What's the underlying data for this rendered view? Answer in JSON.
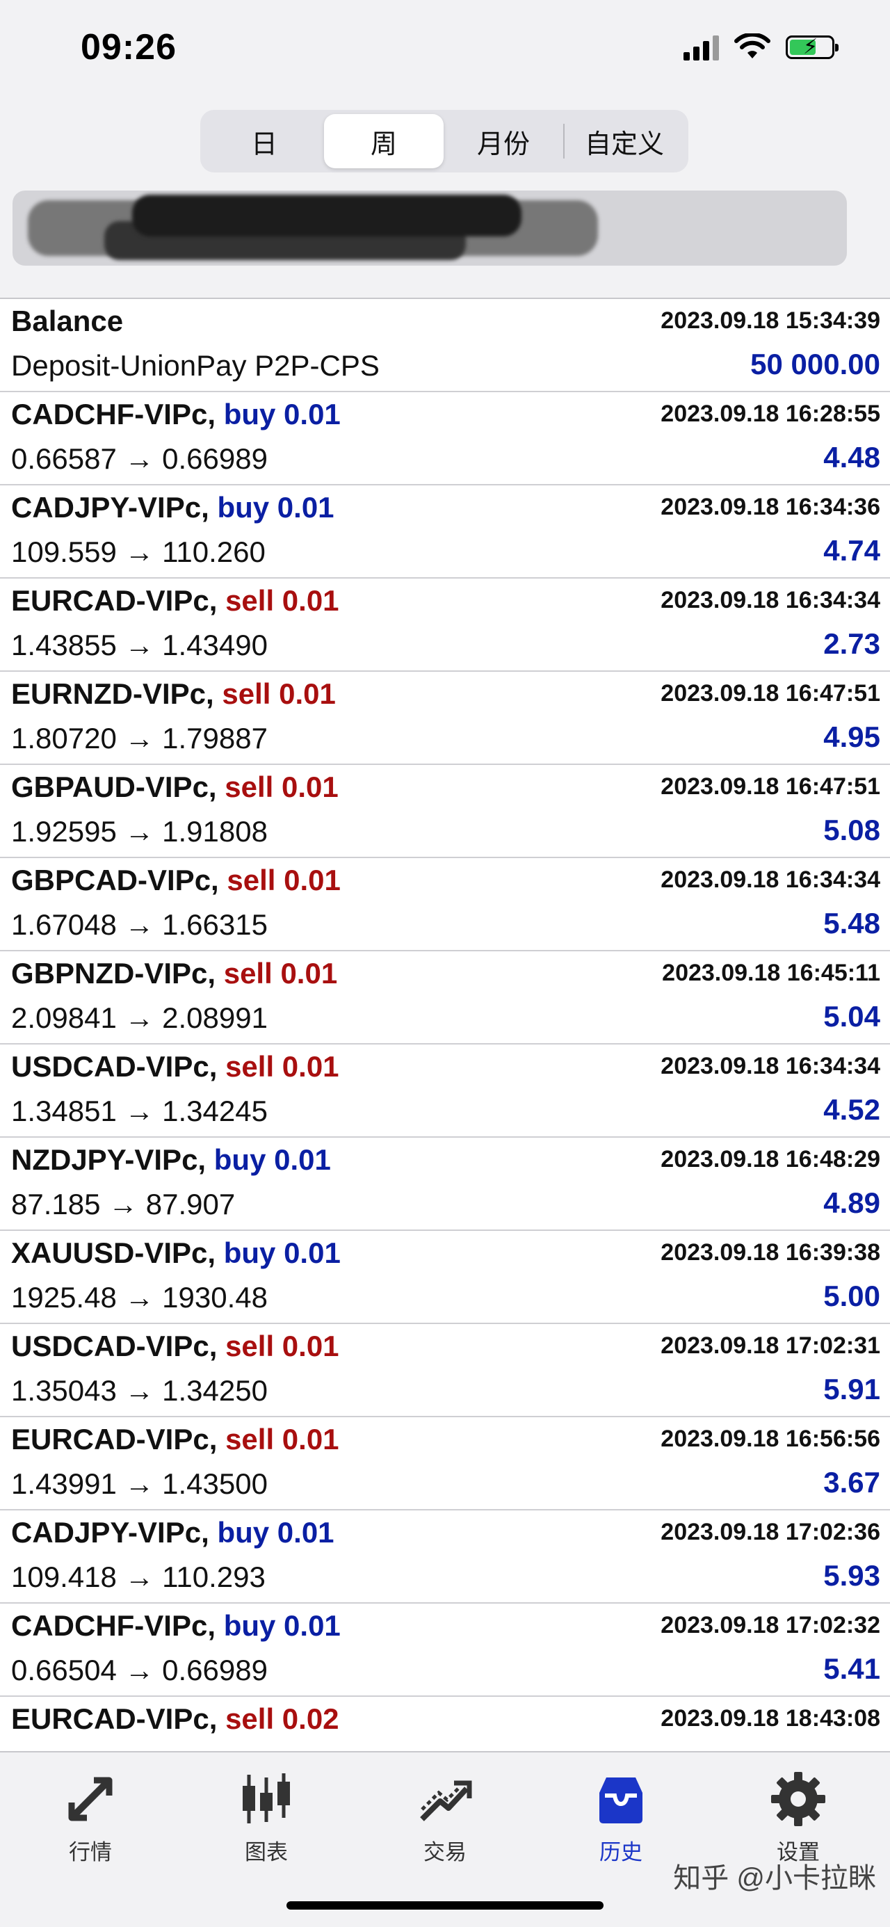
{
  "status_bar": {
    "time": "09:26"
  },
  "period_tabs": [
    {
      "label": "日"
    },
    {
      "label": "周"
    },
    {
      "label": "月份"
    },
    {
      "label": "自定义"
    }
  ],
  "active_period": "周",
  "rows": [
    {
      "symbol": "Balance",
      "type": "",
      "date": "2023.09.18 15:34:39",
      "prices": "Deposit-UnionPay P2P-CPS",
      "profit": "50 000.00"
    },
    {
      "symbol": "CADCHF-VIPc,",
      "type": "buy 0.01",
      "side": "buy",
      "date": "2023.09.18 16:28:55",
      "prices": "0.66587 → 0.66989",
      "profit": "4.48"
    },
    {
      "symbol": "CADJPY-VIPc,",
      "type": "buy 0.01",
      "side": "buy",
      "date": "2023.09.18 16:34:36",
      "prices": "109.559 → 110.260",
      "profit": "4.74"
    },
    {
      "symbol": "EURCAD-VIPc,",
      "type": "sell 0.01",
      "side": "sell",
      "date": "2023.09.18 16:34:34",
      "prices": "1.43855 → 1.43490",
      "profit": "2.73"
    },
    {
      "symbol": "EURNZD-VIPc,",
      "type": "sell 0.01",
      "side": "sell",
      "date": "2023.09.18 16:47:51",
      "prices": "1.80720 → 1.79887",
      "profit": "4.95"
    },
    {
      "symbol": "GBPAUD-VIPc,",
      "type": "sell 0.01",
      "side": "sell",
      "date": "2023.09.18 16:47:51",
      "prices": "1.92595 → 1.91808",
      "profit": "5.08"
    },
    {
      "symbol": "GBPCAD-VIPc,",
      "type": "sell 0.01",
      "side": "sell",
      "date": "2023.09.18 16:34:34",
      "prices": "1.67048 → 1.66315",
      "profit": "5.48"
    },
    {
      "symbol": "GBPNZD-VIPc,",
      "type": "sell 0.01",
      "side": "sell",
      "date": "2023.09.18 16:45:11",
      "prices": "2.09841 → 2.08991",
      "profit": "5.04"
    },
    {
      "symbol": "USDCAD-VIPc,",
      "type": "sell 0.01",
      "side": "sell",
      "date": "2023.09.18 16:34:34",
      "prices": "1.34851 → 1.34245",
      "profit": "4.52"
    },
    {
      "symbol": "NZDJPY-VIPc,",
      "type": "buy 0.01",
      "side": "buy",
      "date": "2023.09.18 16:48:29",
      "prices": "87.185 → 87.907",
      "profit": "4.89"
    },
    {
      "symbol": "XAUUSD-VIPc,",
      "type": "buy 0.01",
      "side": "buy",
      "date": "2023.09.18 16:39:38",
      "prices": "1925.48 → 1930.48",
      "profit": "5.00"
    },
    {
      "symbol": "USDCAD-VIPc,",
      "type": "sell 0.01",
      "side": "sell",
      "date": "2023.09.18 17:02:31",
      "prices": "1.35043 → 1.34250",
      "profit": "5.91"
    },
    {
      "symbol": "EURCAD-VIPc,",
      "type": "sell 0.01",
      "side": "sell",
      "date": "2023.09.18 16:56:56",
      "prices": "1.43991 → 1.43500",
      "profit": "3.67"
    },
    {
      "symbol": "CADJPY-VIPc,",
      "type": "buy 0.01",
      "side": "buy",
      "date": "2023.09.18 17:02:36",
      "prices": "109.418 → 110.293",
      "profit": "5.93"
    },
    {
      "symbol": "CADCHF-VIPc,",
      "type": "buy 0.01",
      "side": "buy",
      "date": "2023.09.18 17:02:32",
      "prices": "0.66504 → 0.66989",
      "profit": "5.41"
    },
    {
      "symbol": "EURCAD-VIPc,",
      "type": "sell 0.02",
      "side": "sell",
      "date": "2023.09.18 18:43:08",
      "prices": "",
      "profit": ""
    }
  ],
  "tabbar": [
    {
      "label": "行情",
      "icon": "quotes-arrows-icon"
    },
    {
      "label": "图表",
      "icon": "candlestick-chart-icon"
    },
    {
      "label": "交易",
      "icon": "trade-trend-icon"
    },
    {
      "label": "历史",
      "icon": "history-inbox-icon"
    },
    {
      "label": "设置",
      "icon": "settings-gear-icon"
    }
  ],
  "active_tab": "历史",
  "watermark": "知乎 @小卡拉眯",
  "colors": {
    "buy": "#0a1fa3",
    "sell": "#a80f0f",
    "profit": "#0a1fa3",
    "active_tab": "#1b36c8"
  }
}
